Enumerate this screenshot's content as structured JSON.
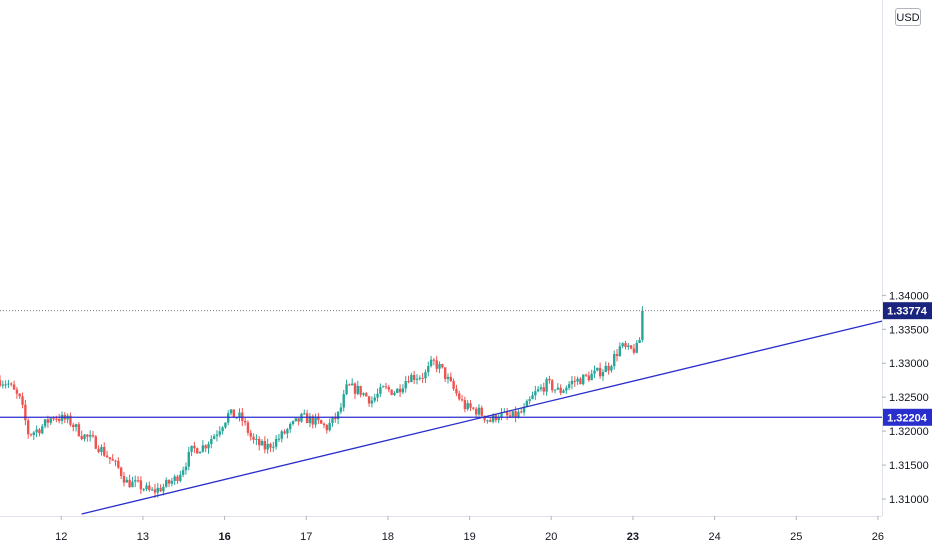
{
  "chart_data": {
    "type": "candlestick",
    "currency": "USD",
    "ylim": [
      1.3075,
      1.3835
    ],
    "y_ticks": [
      {
        "value": 1.31,
        "label": "1.31000"
      },
      {
        "value": 1.315,
        "label": "1.31500"
      },
      {
        "value": 1.32,
        "label": "1.32000"
      },
      {
        "value": 1.325,
        "label": "1.32500"
      },
      {
        "value": 1.33,
        "label": "1.33000"
      },
      {
        "value": 1.335,
        "label": "1.33500"
      },
      {
        "value": 1.34,
        "label": "1.34000"
      }
    ],
    "x_ticks": [
      {
        "t": 12,
        "label": "12",
        "bold": false
      },
      {
        "t": 13,
        "label": "13",
        "bold": false
      },
      {
        "t": 14,
        "label": "16",
        "bold": true
      },
      {
        "t": 15,
        "label": "17",
        "bold": false
      },
      {
        "t": 16,
        "label": "18",
        "bold": false
      },
      {
        "t": 17,
        "label": "19",
        "bold": false
      },
      {
        "t": 18,
        "label": "20",
        "bold": false
      },
      {
        "t": 19,
        "label": "23",
        "bold": true
      },
      {
        "t": 20,
        "label": "24",
        "bold": false
      },
      {
        "t": 21,
        "label": "25",
        "bold": false
      },
      {
        "t": 22,
        "label": "26",
        "bold": false
      }
    ],
    "x_range": [
      11.25,
      22.05
    ],
    "colors": {
      "up": "#26a69a",
      "down": "#ef5350",
      "line": "#2a2ecd",
      "last_price": "#1a237e"
    },
    "last_price": {
      "value": 1.33774,
      "label": "1.33774"
    },
    "horizontal_line": {
      "value": 1.32204,
      "label": "1.32204"
    },
    "trendline": {
      "p1": {
        "t": 12.25,
        "y": 1.3078
      },
      "p2": {
        "t": 22.05,
        "y": 1.3362
      }
    },
    "waypoints": [
      [
        11.25,
        1.3275
      ],
      [
        11.35,
        1.327
      ],
      [
        11.5,
        1.3245
      ],
      [
        11.6,
        1.3195
      ],
      [
        11.75,
        1.3205
      ],
      [
        11.9,
        1.3222
      ],
      [
        12.1,
        1.3215
      ],
      [
        12.25,
        1.3195
      ],
      [
        12.4,
        1.3185
      ],
      [
        12.55,
        1.3165
      ],
      [
        12.7,
        1.3145
      ],
      [
        12.8,
        1.3125
      ],
      [
        12.95,
        1.312
      ],
      [
        13.1,
        1.311
      ],
      [
        13.25,
        1.3118
      ],
      [
        13.4,
        1.313
      ],
      [
        13.5,
        1.3148
      ],
      [
        13.6,
        1.3172
      ],
      [
        13.75,
        1.3178
      ],
      [
        13.9,
        1.3198
      ],
      [
        14.05,
        1.3225
      ],
      [
        14.2,
        1.322
      ],
      [
        14.35,
        1.3185
      ],
      [
        14.5,
        1.3175
      ],
      [
        14.65,
        1.3188
      ],
      [
        14.8,
        1.3205
      ],
      [
        14.95,
        1.322
      ],
      [
        15.1,
        1.3215
      ],
      [
        15.25,
        1.3205
      ],
      [
        15.4,
        1.3225
      ],
      [
        15.5,
        1.3265
      ],
      [
        15.65,
        1.326
      ],
      [
        15.8,
        1.3245
      ],
      [
        15.95,
        1.3262
      ],
      [
        16.1,
        1.3258
      ],
      [
        16.25,
        1.328
      ],
      [
        16.45,
        1.3282
      ],
      [
        16.55,
        1.3302
      ],
      [
        16.65,
        1.3292
      ],
      [
        16.8,
        1.3262
      ],
      [
        16.95,
        1.3235
      ],
      [
        17.1,
        1.323
      ],
      [
        17.25,
        1.3215
      ],
      [
        17.35,
        1.3225
      ],
      [
        17.5,
        1.322
      ],
      [
        17.65,
        1.3228
      ],
      [
        17.8,
        1.3255
      ],
      [
        17.95,
        1.327
      ],
      [
        18.1,
        1.3258
      ],
      [
        18.25,
        1.3272
      ],
      [
        18.4,
        1.3278
      ],
      [
        18.55,
        1.3285
      ],
      [
        18.7,
        1.3295
      ],
      [
        18.85,
        1.3325
      ],
      [
        18.95,
        1.3318
      ],
      [
        19.05,
        1.3322
      ],
      [
        19.1,
        1.3342
      ],
      [
        19.15,
        1.3375
      ]
    ]
  }
}
